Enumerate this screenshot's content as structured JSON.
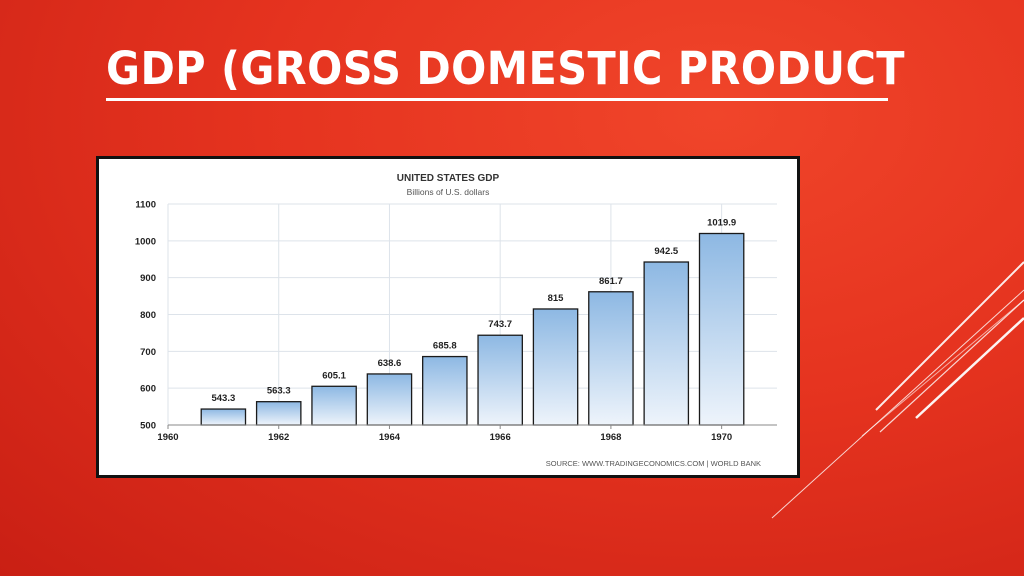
{
  "slide": {
    "title": "GDP (GROSS DOMESTIC PRODUCT"
  },
  "colors": {
    "background": "#e5331f",
    "bar_fill_top": "#8db8e3",
    "bar_fill_bottom": "#eef4fb",
    "bar_stroke": "#1a1a1a"
  },
  "chart_data": {
    "type": "bar",
    "title": "UNITED STATES GDP",
    "subtitle": "Billions of U.S. dollars",
    "categories": [
      "1961",
      "1962",
      "1963",
      "1964",
      "1965",
      "1966",
      "1967",
      "1968",
      "1969",
      "1970"
    ],
    "values": [
      543.3,
      563.3,
      605.1,
      638.6,
      685.8,
      743.7,
      815,
      861.7,
      942.5,
      1019.9
    ],
    "value_labels": [
      "543.3",
      "563.3",
      "605.1",
      "638.6",
      "685.8",
      "743.7",
      "815",
      "861.7",
      "942.5",
      "1019.9"
    ],
    "x_tick_labels": [
      "1960",
      "1962",
      "1964",
      "1966",
      "1968",
      "1970"
    ],
    "y_ticks": [
      "500",
      "600",
      "700",
      "800",
      "900",
      "1000",
      "1100"
    ],
    "ylim": [
      500,
      1100
    ],
    "xlim": [
      1960,
      1971
    ],
    "grid": true,
    "source": "SOURCE: WWW.TRADINGECONOMICS.COM  |  WORLD BANK"
  }
}
